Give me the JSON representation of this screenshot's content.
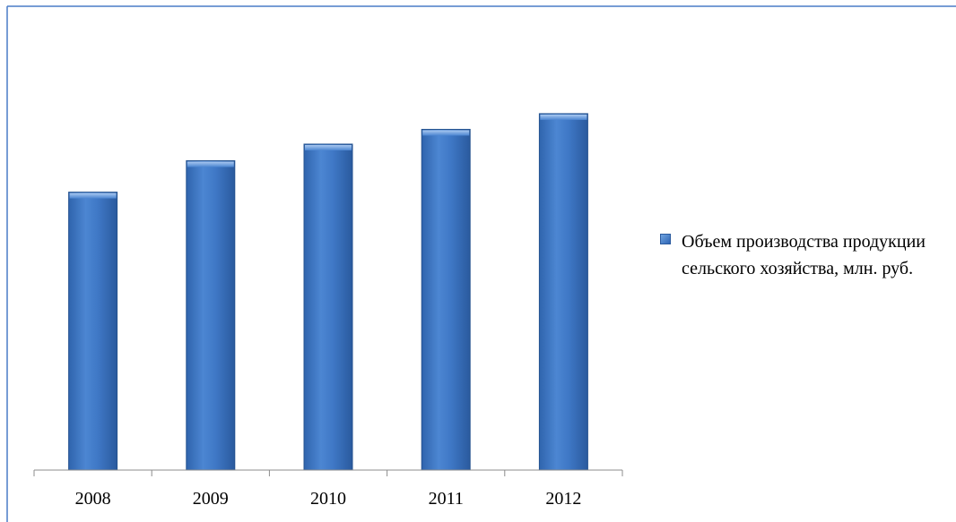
{
  "chart_data": {
    "type": "bar",
    "categories": [
      "2008",
      "2009",
      "2010",
      "2011",
      "2012"
    ],
    "series": [
      {
        "name": "Объем производства продукции сельского хозяйства, млн. руб.",
        "values": [
          301,
          335,
          353,
          369,
          386
        ]
      }
    ],
    "ylim": [
      0,
      480
    ],
    "grid": false,
    "legend_position": "right",
    "colors": {
      "bar_light": "#5b93da",
      "bar_mid": "#3f79c7",
      "bar_dark": "#2b5da5",
      "frame": "#4a7cc7",
      "axis": "#8c8c8c"
    }
  }
}
